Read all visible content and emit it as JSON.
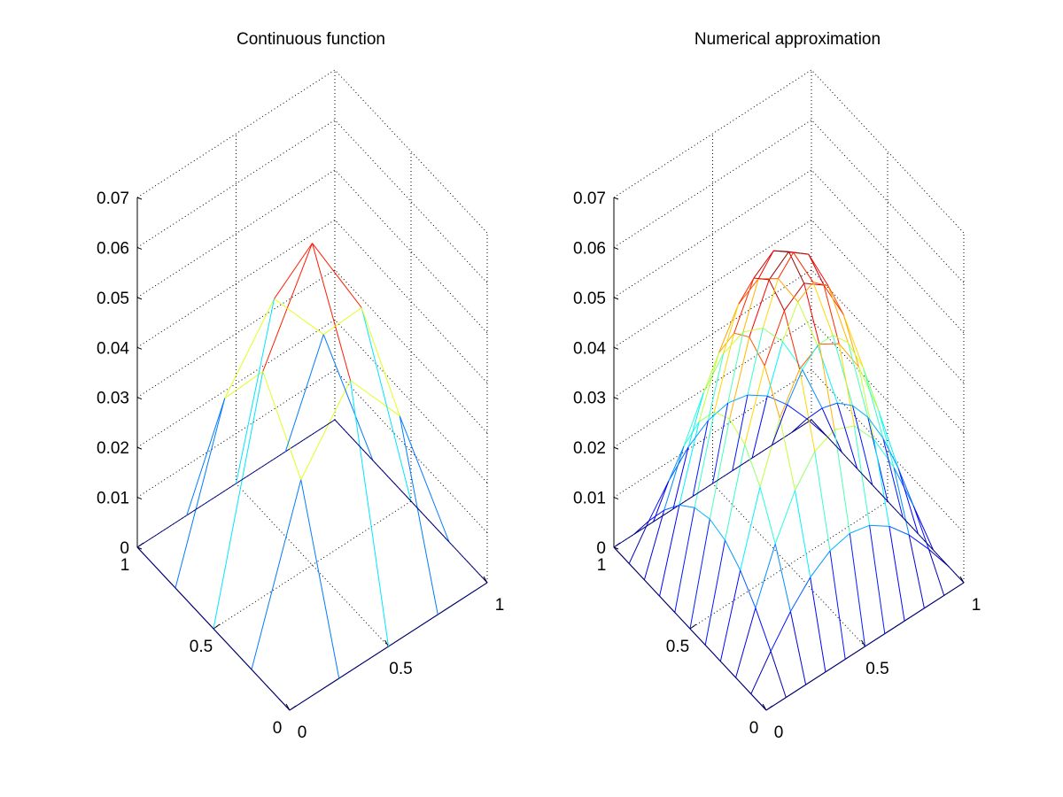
{
  "figure": {
    "background": "#ffffff"
  },
  "chart_data": [
    {
      "type": "surface",
      "title": "Continuous function",
      "xlabel": "",
      "ylabel": "",
      "zlabel": "",
      "grid": true,
      "colormap": "jet",
      "x_ticks": [
        "0",
        "0.5",
        "1"
      ],
      "y_ticks": [
        "0",
        "0.5",
        "1"
      ],
      "z_ticks": [
        "0",
        "0.01",
        "0.02",
        "0.03",
        "0.04",
        "0.05",
        "0.06",
        "0.07"
      ],
      "xlim": [
        0,
        1
      ],
      "ylim": [
        0,
        1
      ],
      "zlim": [
        0,
        0.07
      ],
      "x": [
        0,
        0.25,
        0.5,
        0.75,
        1
      ],
      "y": [
        0,
        0.25,
        0.5,
        0.75,
        1
      ],
      "z": [
        [
          0,
          0,
          0,
          0,
          0
        ],
        [
          0,
          0.0316,
          0.0451,
          0.0316,
          0
        ],
        [
          0,
          0.0451,
          0.0644,
          0.0451,
          0
        ],
        [
          0,
          0.0316,
          0.0451,
          0.0316,
          0
        ],
        [
          0,
          0,
          0,
          0,
          0
        ]
      ]
    },
    {
      "type": "surface",
      "title": "Numerical approximation",
      "xlabel": "",
      "ylabel": "",
      "zlabel": "",
      "grid": true,
      "colormap": "jet",
      "x_ticks": [
        "0",
        "0.5",
        "1"
      ],
      "y_ticks": [
        "0",
        "0.5",
        "1"
      ],
      "z_ticks": [
        "0",
        "0.01",
        "0.02",
        "0.03",
        "0.04",
        "0.05",
        "0.06",
        "0.07"
      ],
      "xlim": [
        0,
        1
      ],
      "ylim": [
        0,
        1
      ],
      "zlim": [
        0,
        0.07
      ],
      "x": [
        0,
        0.1,
        0.2,
        0.3,
        0.4,
        0.5,
        0.6,
        0.7,
        0.8,
        0.9,
        1
      ],
      "y": [
        0,
        0.1,
        0.2,
        0.3,
        0.4,
        0.5,
        0.6,
        0.7,
        0.8,
        0.9,
        1
      ],
      "peak_z": 0.0627,
      "profile": "sin(pi*x)*sin(pi*y)"
    }
  ]
}
